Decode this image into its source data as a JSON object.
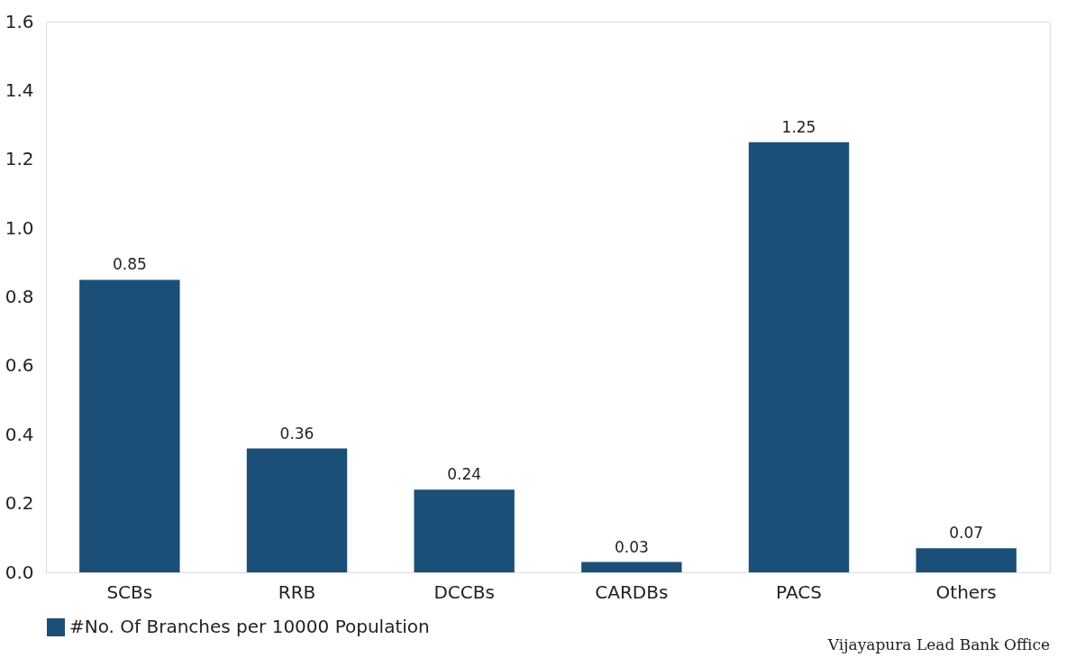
{
  "chart_data": {
    "type": "bar",
    "categories": [
      "SCBs",
      "RRB",
      "DCCBs",
      "CARDBs",
      "PACS",
      "Others"
    ],
    "series": [
      {
        "name": "#No. Of Branches per 10000 Population",
        "color": "#1b4f78",
        "values": [
          0.85,
          0.36,
          0.24,
          0.03,
          1.25,
          0.07
        ]
      }
    ],
    "ylim": [
      0,
      1.6
    ],
    "yticks": [
      {
        "value": 0,
        "label": "0.0"
      },
      {
        "value": 0.2,
        "label": "0.2"
      },
      {
        "value": 0.4,
        "label": "0.4"
      },
      {
        "value": 0.6,
        "label": "0.6"
      },
      {
        "value": 0.8,
        "label": "0.8"
      },
      {
        "value": 1.0,
        "label": "1.0"
      },
      {
        "value": 1.2,
        "label": "1.2"
      },
      {
        "value": 1.4,
        "label": "1.4"
      },
      {
        "value": 1.6,
        "label": "1.6"
      }
    ],
    "data_labels": true,
    "grid": false,
    "legend": "bottom",
    "annotations": [
      "Vijayapura Lead Bank Office"
    ]
  }
}
